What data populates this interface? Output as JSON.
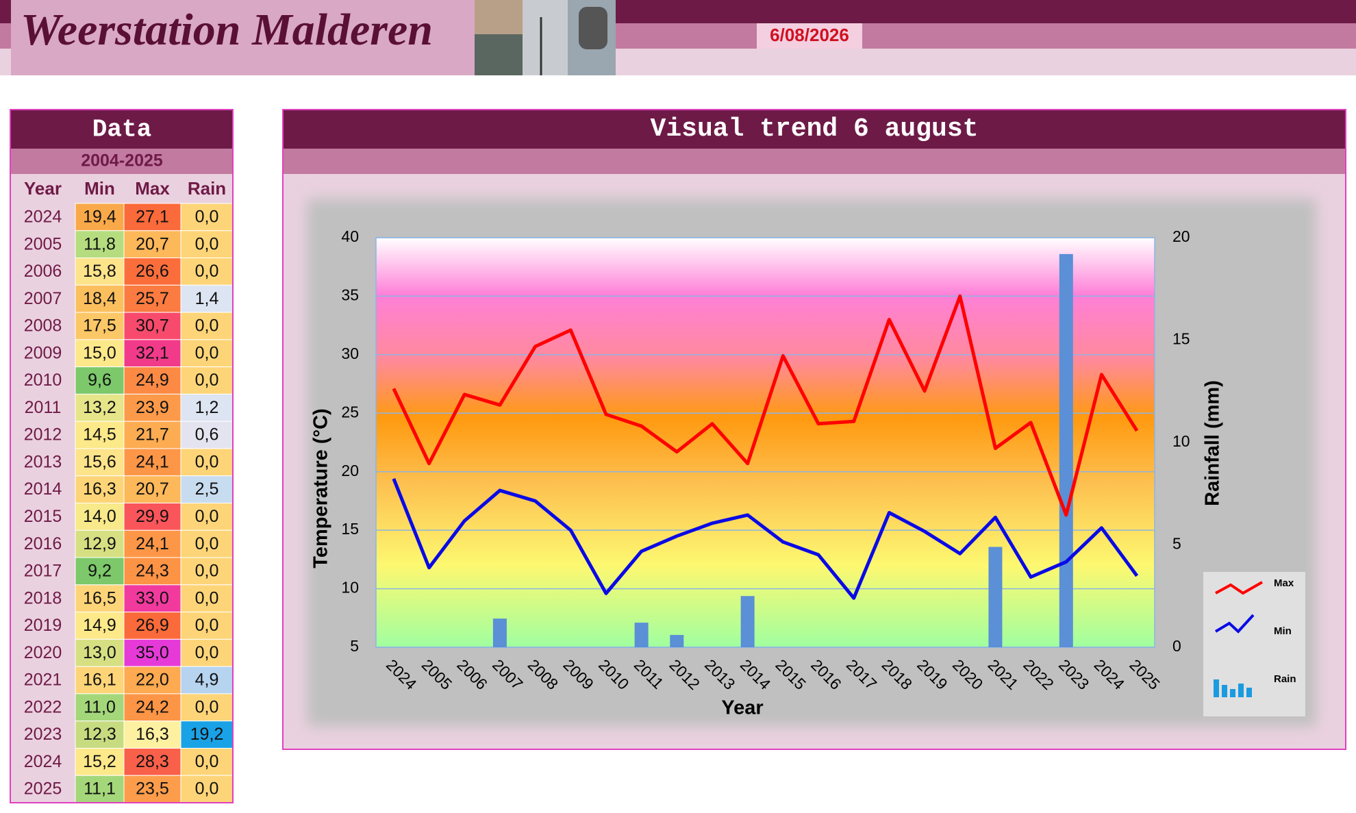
{
  "header": {
    "title": "Weerstation Malderen",
    "date": "6/08/2026"
  },
  "table": {
    "title": "Data",
    "subtitle": "2004-2025",
    "columns": [
      "Year",
      "Min",
      "Max",
      "Rain"
    ],
    "rows": [
      [
        "2024",
        "19,4",
        "27,1",
        "0,0"
      ],
      [
        "2005",
        "11,8",
        "20,7",
        "0,0"
      ],
      [
        "2006",
        "15,8",
        "26,6",
        "0,0"
      ],
      [
        "2007",
        "18,4",
        "25,7",
        "1,4"
      ],
      [
        "2008",
        "17,5",
        "30,7",
        "0,0"
      ],
      [
        "2009",
        "15,0",
        "32,1",
        "0,0"
      ],
      [
        "2010",
        "9,6",
        "24,9",
        "0,0"
      ],
      [
        "2011",
        "13,2",
        "23,9",
        "1,2"
      ],
      [
        "2012",
        "14,5",
        "21,7",
        "0,6"
      ],
      [
        "2013",
        "15,6",
        "24,1",
        "0,0"
      ],
      [
        "2014",
        "16,3",
        "20,7",
        "2,5"
      ],
      [
        "2015",
        "14,0",
        "29,9",
        "0,0"
      ],
      [
        "2016",
        "12,9",
        "24,1",
        "0,0"
      ],
      [
        "2017",
        "9,2",
        "24,3",
        "0,0"
      ],
      [
        "2018",
        "16,5",
        "33,0",
        "0,0"
      ],
      [
        "2019",
        "14,9",
        "26,9",
        "0,0"
      ],
      [
        "2020",
        "13,0",
        "35,0",
        "0,0"
      ],
      [
        "2021",
        "16,1",
        "22,0",
        "4,9"
      ],
      [
        "2022",
        "11,0",
        "24,2",
        "0,0"
      ],
      [
        "2023",
        "12,3",
        "16,3",
        "19,2"
      ],
      [
        "2024",
        "15,2",
        "28,3",
        "0,0"
      ],
      [
        "2025",
        "11,1",
        "23,5",
        "0,0"
      ]
    ],
    "cell_colors": [
      [
        "#f9a949",
        "#fb6a3a",
        "#fdd578"
      ],
      [
        "#b5dd7f",
        "#fdb85a",
        "#fdd578"
      ],
      [
        "#fde38a",
        "#fb6e3c",
        "#fdd578"
      ],
      [
        "#fbbf5e",
        "#fb7b40",
        "#dde4f2"
      ],
      [
        "#fcc766",
        "#f74a6c",
        "#fdd578"
      ],
      [
        "#fde88a",
        "#f23a8a",
        "#fdd578"
      ],
      [
        "#7cc86a",
        "#fc8a44",
        "#fdd578"
      ],
      [
        "#e6e58a",
        "#fd9a4a",
        "#dde4f2"
      ],
      [
        "#fbe98a",
        "#fdac52",
        "#e4e4f0"
      ],
      [
        "#fde38a",
        "#fd9747",
        "#fdd578"
      ],
      [
        "#fdd578",
        "#fdb85a",
        "#c8dcf0"
      ],
      [
        "#f8e98a",
        "#f9555a",
        "#fdd578"
      ],
      [
        "#d6e083",
        "#fd9747",
        "#fdd578"
      ],
      [
        "#7cc86a",
        "#fd9345",
        "#fdd578"
      ],
      [
        "#fdd578",
        "#f23a9e",
        "#fdd578"
      ],
      [
        "#fde88a",
        "#fb6a3a",
        "#fdd578"
      ],
      [
        "#d6e083",
        "#e63ad8",
        "#fdd578"
      ],
      [
        "#fdd578",
        "#fdaa50",
        "#b6d3ef"
      ],
      [
        "#a4d77a",
        "#fd9546",
        "#fdd578"
      ],
      [
        "#c7dc80",
        "#fdf0a0",
        "#1aa2e6"
      ],
      [
        "#fde88a",
        "#f9604a",
        "#fdd578"
      ],
      [
        "#a4d77a",
        "#fd9d4b",
        "#fdd578"
      ]
    ]
  },
  "chart_data": {
    "type": "line",
    "title": "Visual trend 6 august",
    "xlabel": "Year",
    "ylabel": "Temperature (°C)",
    "y2label": "Rainfall (mm)",
    "categories": [
      "2024",
      "2005",
      "2006",
      "2007",
      "2008",
      "2009",
      "2010",
      "2011",
      "2012",
      "2013",
      "2014",
      "2015",
      "2016",
      "2017",
      "2018",
      "2019",
      "2020",
      "2021",
      "2022",
      "2023",
      "2024",
      "2025"
    ],
    "series": [
      {
        "name": "Max",
        "color": "#ff0000",
        "type": "line",
        "values": [
          27.1,
          20.7,
          26.6,
          25.7,
          30.7,
          32.1,
          24.9,
          23.9,
          21.7,
          24.1,
          20.7,
          29.9,
          24.1,
          24.3,
          33.0,
          26.9,
          35.0,
          22.0,
          24.2,
          16.3,
          28.3,
          23.5
        ]
      },
      {
        "name": "Min",
        "color": "#0a0ae6",
        "type": "line",
        "values": [
          19.4,
          11.8,
          15.8,
          18.4,
          17.5,
          15.0,
          9.6,
          13.2,
          14.5,
          15.6,
          16.3,
          14.0,
          12.9,
          9.2,
          16.5,
          14.9,
          13.0,
          16.1,
          11.0,
          12.3,
          15.2,
          11.1
        ]
      },
      {
        "name": "Rain",
        "color": "#5b8fd6",
        "type": "bar",
        "axis": "y2",
        "values": [
          0,
          0,
          0,
          1.4,
          0,
          0,
          0,
          1.2,
          0.6,
          0,
          2.5,
          0,
          0,
          0,
          0,
          0,
          0,
          4.9,
          0,
          19.2,
          0,
          0
        ]
      }
    ],
    "ylim": [
      5,
      40
    ],
    "yticks": [
      5,
      10,
      15,
      20,
      25,
      30,
      35,
      40
    ],
    "y2lim": [
      0,
      20
    ],
    "y2ticks": [
      0,
      5,
      10,
      15,
      20
    ],
    "grid": true,
    "legend": "right"
  }
}
